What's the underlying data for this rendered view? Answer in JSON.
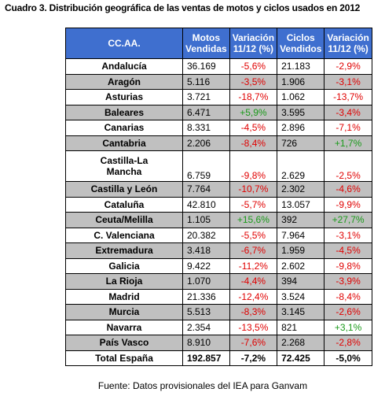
{
  "title": "Cuadro 3. Distribución geográfica de las ventas de motos y ciclos usados en 2012",
  "table": {
    "header": [
      "CC.AA.",
      "Motos\nVendidas",
      "Variación\n11/12 (%)",
      "Ciclos\nVendidos",
      "Variación\n11/12 (%)"
    ],
    "rows": [
      [
        "Andalucía",
        "36.169",
        "-5,6%",
        "21.183",
        "-2,9%"
      ],
      [
        "Aragón",
        "5.116",
        "-3,5%",
        "1.906",
        "-3,1%"
      ],
      [
        "Asturias",
        "3.721",
        "-18,7%",
        "1.062",
        "-13,7%"
      ],
      [
        "Baleares",
        "6.471",
        "+5,9%",
        "3.595",
        "-3,4%"
      ],
      [
        "Canarias",
        "8.331",
        "-4,5%",
        "2.896",
        "-7,1%"
      ],
      [
        "Cantabria",
        "2.206",
        "-8,4%",
        "726",
        "+1,7%"
      ],
      [
        "Castilla-La\nMancha",
        "6.759",
        "-9,8%",
        "2.629",
        "-2,5%"
      ],
      [
        "Castilla y León",
        "7.764",
        "-10,7%",
        "2.302",
        "-4,6%"
      ],
      [
        "Cataluña",
        "42.810",
        "-5,7%",
        "13.057",
        "-9,9%"
      ],
      [
        "Ceuta/Melilla",
        "1.105",
        "+15,6%",
        "392",
        "+27,7%"
      ],
      [
        "C. Valenciana",
        "20.382",
        "-5,5%",
        "7.964",
        "-3,1%"
      ],
      [
        "Extremadura",
        "3.418",
        "-6,7%",
        "1.959",
        "-4,5%"
      ],
      [
        "Galicia",
        "9.422",
        "-11,2%",
        "2.602",
        "-9,8%"
      ],
      [
        "La Rioja",
        "1.070",
        "-4,4%",
        "394",
        "-3,9%"
      ],
      [
        "Madrid",
        "21.336",
        "-12,4%",
        "3.524",
        "-8,4%"
      ],
      [
        "Murcia",
        "5.513",
        "-8,3%",
        "3.145",
        "-2,6%"
      ],
      [
        "Navarra",
        "2.354",
        "-13,5%",
        "821",
        "+3,1%"
      ],
      [
        "País Vasco",
        "8.910",
        "-7,6%",
        "2.268",
        "-2,8%"
      ]
    ],
    "total": [
      "Total España",
      "192.857",
      "-7,2%",
      "72.425",
      "-5,0%"
    ]
  },
  "source": "Fuente: Datos provisionales del IEA para Ganvam"
}
